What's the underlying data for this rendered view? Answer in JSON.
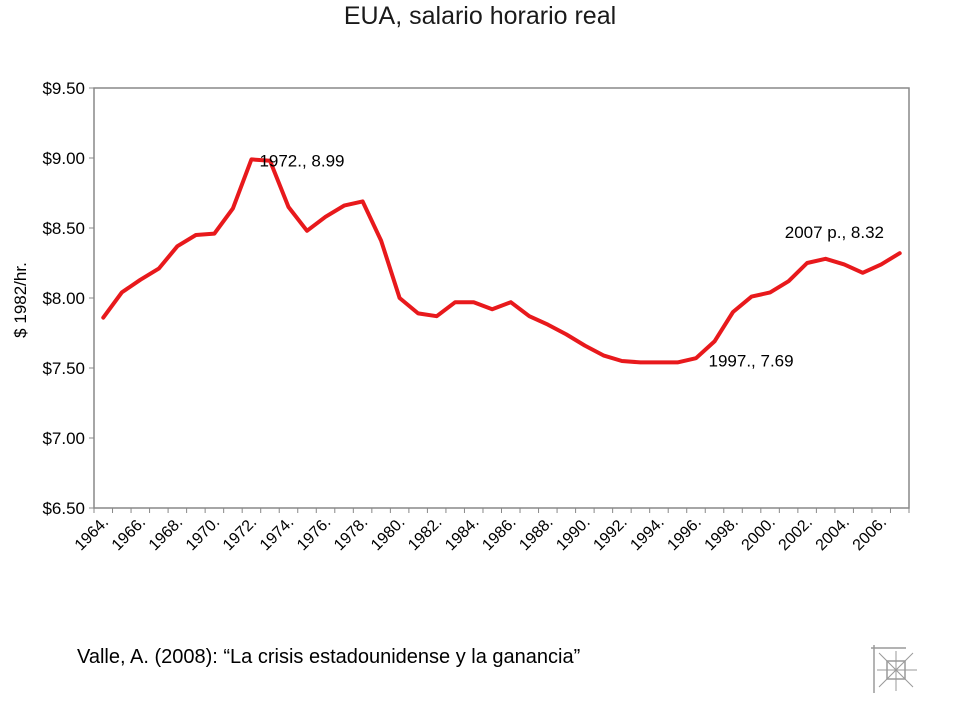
{
  "chart_data": {
    "type": "line",
    "title": "EUA, salario horario real",
    "ylabel": "$ 1982/hr.",
    "xlabel": "",
    "ylim": [
      6.5,
      9.5
    ],
    "y_ticks": [
      6.5,
      7.0,
      7.5,
      8.0,
      8.5,
      9.0,
      9.5
    ],
    "y_tick_labels": [
      "$6.50",
      "$7.00",
      "$7.50",
      "$8.00",
      "$8.50",
      "$9.00",
      "$9.50"
    ],
    "x_tick_labels": [
      "1964.",
      "1966.",
      "1968.",
      "1970.",
      "1972.",
      "1974.",
      "1976.",
      "1978.",
      "1980.",
      "1982.",
      "1984.",
      "1986.",
      "1988.",
      "1990.",
      "1992.",
      "1994.",
      "1996.",
      "1998.",
      "2000.",
      "2002.",
      "2004.",
      "2006."
    ],
    "grid": false,
    "series_color": "#e8191c",
    "series": [
      {
        "name": "",
        "x": [
          1964,
          1965,
          1966,
          1967,
          1968,
          1969,
          1970,
          1971,
          1972,
          1973,
          1974,
          1975,
          1976,
          1977,
          1978,
          1979,
          1980,
          1981,
          1982,
          1983,
          1984,
          1985,
          1986,
          1987,
          1988,
          1989,
          1990,
          1991,
          1992,
          1993,
          1994,
          1995,
          1996,
          1997,
          1998,
          1999,
          2000,
          2001,
          2002,
          2003,
          2004,
          2005,
          2006,
          2007
        ],
        "values": [
          7.86,
          8.04,
          8.13,
          8.21,
          8.37,
          8.45,
          8.46,
          8.64,
          8.99,
          8.98,
          8.65,
          8.48,
          8.58,
          8.66,
          8.69,
          8.41,
          8.0,
          7.89,
          7.87,
          7.97,
          7.97,
          7.92,
          7.97,
          7.87,
          7.81,
          7.74,
          7.66,
          7.59,
          7.55,
          7.54,
          7.54,
          7.54,
          7.57,
          7.69,
          7.9,
          8.01,
          8.04,
          8.12,
          8.25,
          8.28,
          8.24,
          8.18,
          8.24,
          8.32
        ]
      }
    ],
    "annotations": [
      {
        "x": 1972,
        "y": 8.99,
        "text": "1972., 8.99"
      },
      {
        "x": 1997,
        "y": 7.69,
        "text": "1997., 7.69"
      },
      {
        "x": 2007,
        "y": 8.32,
        "text": "2007 p., 8.32"
      }
    ]
  },
  "source": "Valle, A. (2008): “La crisis estadounidense y la ganancia”"
}
